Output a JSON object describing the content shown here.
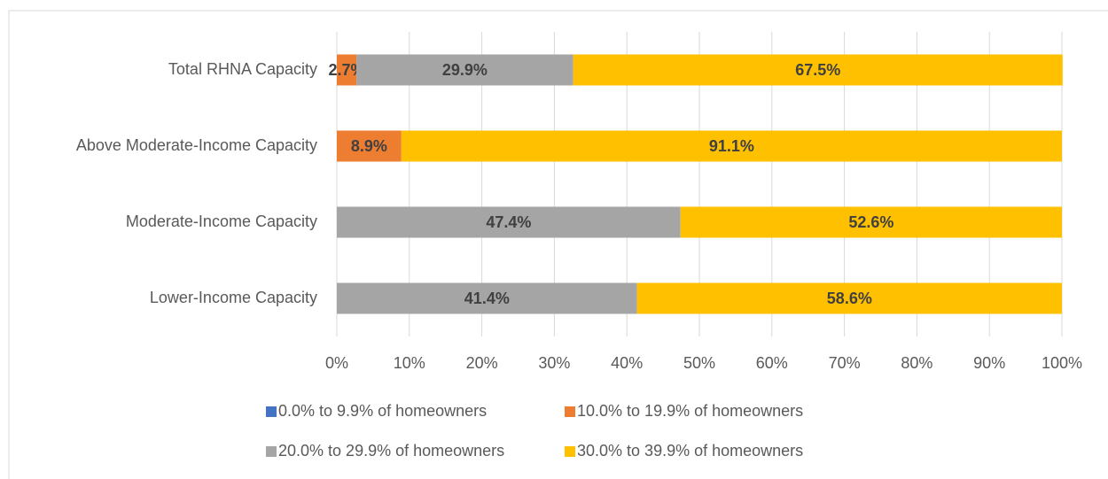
{
  "chart_data": {
    "type": "stacked_barh",
    "categories": [
      "Total RHNA Capacity",
      "Above Moderate-Income Capacity",
      "Moderate-Income Capacity",
      "Lower-Income Capacity"
    ],
    "series": [
      {
        "name": "0.0% to 9.9% of homeowners",
        "color": "#4472c4",
        "values": [
          0,
          0,
          0,
          0
        ],
        "value_labels": [
          null,
          null,
          null,
          null
        ]
      },
      {
        "name": "10.0% to 19.9% of homeowners",
        "color": "#ed7d31",
        "values": [
          2.7,
          8.9,
          0,
          0
        ],
        "value_labels": [
          "2.7%",
          "8.9%",
          null,
          null
        ]
      },
      {
        "name": "20.0% to 29.9% of homeowners",
        "color": "#a5a5a5",
        "values": [
          29.9,
          0,
          47.4,
          41.4
        ],
        "value_labels": [
          "29.9%",
          null,
          "47.4%",
          "41.4%"
        ]
      },
      {
        "name": "30.0% to 39.9% of homeowners",
        "color": "#ffc000",
        "values": [
          67.5,
          91.1,
          52.6,
          58.6
        ],
        "value_labels": [
          "67.5%",
          "91.1%",
          "52.6%",
          "58.6%"
        ]
      }
    ],
    "xlim": [
      0,
      100
    ],
    "xticks": [
      {
        "value": 0,
        "label": "0%"
      },
      {
        "value": 10,
        "label": "10%"
      },
      {
        "value": 20,
        "label": "20%"
      },
      {
        "value": 30,
        "label": "30%"
      },
      {
        "value": 40,
        "label": "40%"
      },
      {
        "value": 50,
        "label": "50%"
      },
      {
        "value": 60,
        "label": "60%"
      },
      {
        "value": 70,
        "label": "70%"
      },
      {
        "value": 80,
        "label": "80%"
      },
      {
        "value": 90,
        "label": "90%"
      },
      {
        "value": 100,
        "label": "100%"
      }
    ],
    "grid": true,
    "legend": "bottom"
  }
}
